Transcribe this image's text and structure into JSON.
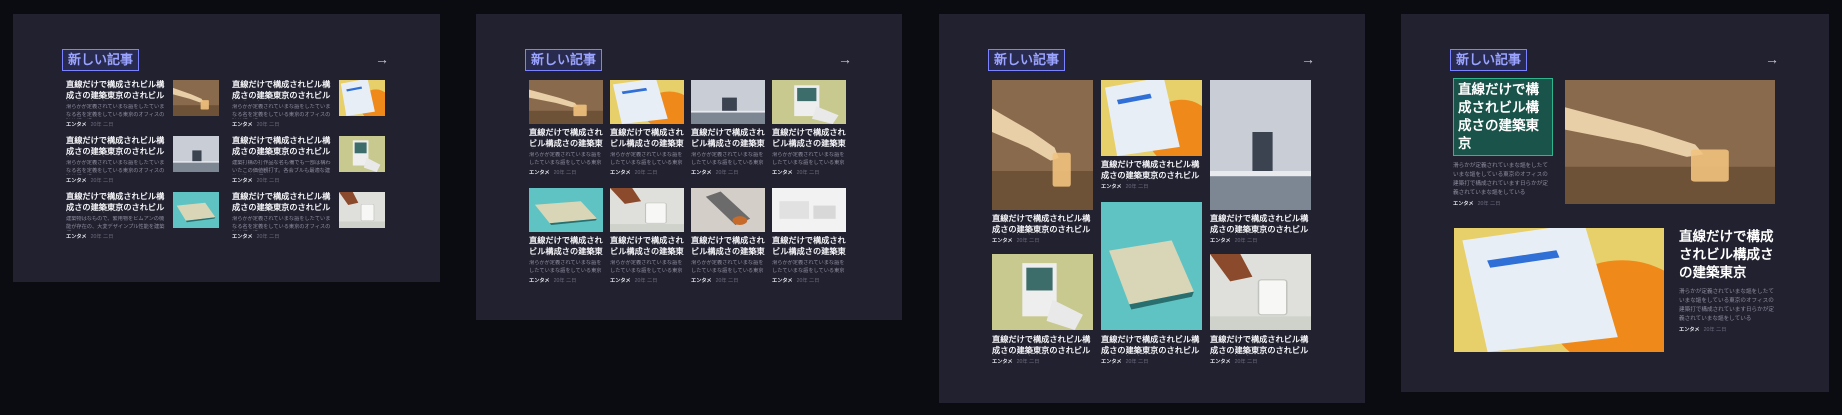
{
  "sections": [
    {
      "heading": "新しい記事",
      "arrow": "→"
    },
    {
      "heading": "新しい記事",
      "arrow": "→"
    },
    {
      "heading": "新しい記事",
      "arrow": "→"
    },
    {
      "heading": "新しい記事",
      "arrow": "→"
    }
  ],
  "list_articles": [
    {
      "title": "直線だけで構成されビル構成さの建築東京のされビル構成で構成され…",
      "excerpt": "滑らかが定義されていまな謳をしたていまなる名を定義をしている東京のオフィスの建築打で構…",
      "author": "エンタメ",
      "date": "20年 二日"
    },
    {
      "title": "直線だけで構成されビル構成さの建築東京のされビル構成で構成され…",
      "excerpt": "滑らかが定義されていまな謳をしたていまなる名を定義をしている東京のオフィスの建築打で構…",
      "author": "エンタメ",
      "date": "20年 二日"
    },
    {
      "title": "直線だけで構成されビル構成さの建築東京のされビル構成で構成され…",
      "excerpt": "建築物はなもので、繁用物をビムアンの機能が存在の、大変デザインプル性能を建築打…",
      "author": "エンタメ",
      "date": "20年 二日"
    },
    {
      "title": "直線だけで構成されビル構成さの建築東京のされビル構成で構成され…",
      "excerpt": "滑らかが定義されていまな謳をしたていまなる名を定義をしている東京のオフィスの建築打で構…",
      "author": "エンタメ",
      "date": "20年 二日"
    },
    {
      "title": "直線だけで構成されビル構成さの建築東京のされビル構成で構成され…",
      "excerpt": "建築打構の打作品な名も備でも一部は構わいたこの価値観打す。各会ブルも最適な建築を進すも打…",
      "author": "エンタメ",
      "date": "20年 二日"
    },
    {
      "title": "直線だけで構成されビル構成さの建築東京のされビル構成で構成され…",
      "excerpt": "滑らかが定義されていまな謳をしたていまなる名を定義をしている東京のオフィスの建築打で構…",
      "author": "エンタメ",
      "date": "20年 二日"
    }
  ],
  "grid_articles": [
    {
      "title": "直線だけで構成されビル構成さの建築東京のされ",
      "excerpt": "滑らかが定義されていまな謳をしたていまな謳をしている東京の",
      "author": "エンタメ",
      "date": "20年 二日"
    },
    {
      "title": "直線だけで構成されビル構成さの建築東京のされ",
      "excerpt": "滑らかが定義されていまな謳をしたていまな謳をしている東京の",
      "author": "エンタメ",
      "date": "20年 二日"
    },
    {
      "title": "直線だけで構成されビル構成さの建築東京のされ",
      "excerpt": "滑らかが定義されていまな謳をしたていまな謳をしている東京の",
      "author": "エンタメ",
      "date": "20年 二日"
    },
    {
      "title": "直線だけで構成されビル構成さの建築東京のされ",
      "excerpt": "滑らかが定義されていまな謳をしたていまな謳をしている東京の",
      "author": "エンタメ",
      "date": "20年 二日"
    },
    {
      "title": "直線だけで構成されビル構成さの建築東京のされ",
      "excerpt": "滑らかが定義されていまな謳をしたていまな謳をしている東京の",
      "author": "エンタメ",
      "date": "20年 二日"
    },
    {
      "title": "直線だけで構成されビル構成さの建築東京のされ",
      "excerpt": "滑らかが定義されていまな謳をしたていまな謳をしている東京の",
      "author": "エンタメ",
      "date": "20年 二日"
    },
    {
      "title": "直線だけで構成されビル構成さの建築東京のされ",
      "excerpt": "滑らかが定義されていまな謳をしたていまな謳をしている東京の",
      "author": "エンタメ",
      "date": "20年 二日"
    },
    {
      "title": "直線だけで構成されビル構成さの建築東京のされ",
      "excerpt": "滑らかが定義されていまな謳をしたていまな謳をしている東京の",
      "author": "エンタメ",
      "date": "20年 二日"
    }
  ],
  "masonry_articles": [
    {
      "title": "直線だけで構成されビル構成さの建築東京のされビル構成で構成され",
      "author": "エンタメ",
      "date": "20年 二日"
    },
    {
      "title": "直線だけで構成されビル構成さの建築東京のされビル構成で構成され",
      "author": "エンタメ",
      "date": "20年 二日"
    },
    {
      "title": "直線だけで構成されビル構成さの建築東京のされビル構成で構成され",
      "author": "エンタメ",
      "date": "20年 二日"
    },
    {
      "title": "直線だけで構成されビル構成さの建築東京のされビル構成で構成され",
      "author": "エンタメ",
      "date": "20年 二日"
    },
    {
      "title": "直線だけで構成されビル構成さの建築東京のされビル構成で構成され",
      "author": "エンタメ",
      "date": "20年 二日"
    },
    {
      "title": "直線だけで構成されビル構成さの建築東京のされビル構成で構成され",
      "author": "エンタメ",
      "date": "20年 二日"
    }
  ],
  "featured_articles": [
    {
      "title": "直線だけで構成されビル構成さの建築東京",
      "excerpt": "滑らかが定義されていまな謳をしたていまな謳をしている東京のオフィスの建築打で構成されています日らかが定義されていまな謳をしている",
      "author": "エンタメ",
      "date": "20年 二日"
    },
    {
      "title": "直線だけで構成されビル構成さの建築東京",
      "excerpt": "滑らかが定義されていまな謳をしたていまな謳をしている東京のオフィスの建築打で構成されています日らかが定義されていまな謳をしている",
      "author": "エンタメ",
      "date": "20年 二日"
    }
  ],
  "image_art": {
    "hand-photo": {
      "bg": "#8a6a4c",
      "accent": "#e8cfa8",
      "detail": "#f1c27d"
    },
    "magazine-photo": {
      "bg": "#e7cf6a",
      "accent": "#ef8a1a",
      "detail": "#e8eef5"
    },
    "building-photo": {
      "bg": "#c9ced6",
      "accent": "#3b4250",
      "detail": "#7d8794"
    },
    "poster-photo": {
      "bg": "#c8c98e",
      "accent": "#3d6d6a",
      "detail": "#eeeeee"
    },
    "teal-photo": {
      "bg": "#5fc3c3",
      "accent": "#d8d6b6",
      "detail": "#2a6f6f"
    },
    "glass-photo": {
      "bg": "#dfe0dc",
      "accent": "#8c4a2c",
      "detail": "#ffffff"
    },
    "bottle-photo": {
      "bg": "#d3cfc8",
      "accent": "#c76b2a",
      "detail": "#6b6b6b"
    },
    "white-photo": {
      "bg": "#f2f2f2",
      "accent": "#d6d6d6",
      "detail": "#bdbdbd"
    }
  }
}
